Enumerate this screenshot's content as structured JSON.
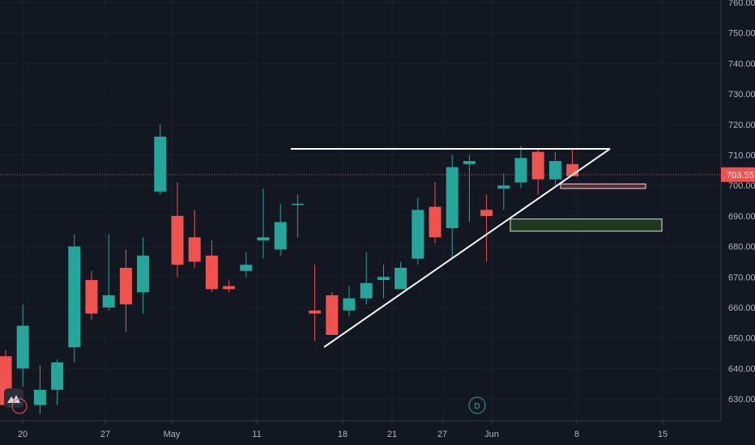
{
  "chart_data": {
    "type": "candlestick",
    "ylim": [
      620,
      762
    ],
    "y_ticks": [
      "630.00",
      "640.00",
      "650.00",
      "660.00",
      "670.00",
      "680.00",
      "690.00",
      "700.00",
      "710.00",
      "720.00",
      "730.00",
      "740.00",
      "750.00",
      "760.00"
    ],
    "x_ticks": [
      "20",
      "27",
      "May",
      "11",
      "18",
      "21",
      "27",
      "Jun",
      "8",
      "15"
    ],
    "last_price": "703.55",
    "colors": {
      "up": "#26a69a",
      "down": "#ef5350",
      "background": "#131722",
      "last_price_line": "#ef5350"
    },
    "candles": [
      {
        "o": 644,
        "h": 646,
        "l": 628,
        "c": 628
      },
      {
        "o": 640,
        "h": 661,
        "l": 634,
        "c": 654
      },
      {
        "o": 628,
        "h": 641,
        "l": 625,
        "c": 633
      },
      {
        "o": 633,
        "h": 643,
        "l": 628,
        "c": 642
      },
      {
        "o": 647,
        "h": 684,
        "l": 642,
        "c": 680
      },
      {
        "o": 669,
        "h": 672,
        "l": 656,
        "c": 658
      },
      {
        "o": 660,
        "h": 684,
        "l": 659,
        "c": 664
      },
      {
        "o": 673,
        "h": 679,
        "l": 652,
        "c": 661
      },
      {
        "o": 665,
        "h": 683,
        "l": 658,
        "c": 677
      },
      {
        "o": 698,
        "h": 720,
        "l": 697,
        "c": 716
      },
      {
        "o": 690,
        "h": 701,
        "l": 670,
        "c": 674
      },
      {
        "o": 683,
        "h": 692,
        "l": 673,
        "c": 675
      },
      {
        "o": 677,
        "h": 682,
        "l": 665,
        "c": 666
      },
      {
        "o": 667,
        "h": 669,
        "l": 665,
        "c": 666
      },
      {
        "o": 672,
        "h": 678,
        "l": 670,
        "c": 674
      },
      {
        "o": 682,
        "h": 699,
        "l": 676,
        "c": 683
      },
      {
        "o": 679,
        "h": 694,
        "l": 677,
        "c": 688
      },
      {
        "o": 694,
        "h": 697,
        "l": 683,
        "c": 694
      },
      {
        "o": 659,
        "h": 674,
        "l": 649,
        "c": 658
      },
      {
        "o": 664,
        "h": 665,
        "l": 651,
        "c": 651
      },
      {
        "o": 659,
        "h": 667,
        "l": 657,
        "c": 663
      },
      {
        "o": 663,
        "h": 678,
        "l": 661,
        "c": 668
      },
      {
        "o": 669,
        "h": 674,
        "l": 663,
        "c": 670
      },
      {
        "o": 666,
        "h": 675,
        "l": 666,
        "c": 673
      },
      {
        "o": 676,
        "h": 696,
        "l": 674,
        "c": 692
      },
      {
        "o": 693,
        "h": 701,
        "l": 681,
        "c": 683
      },
      {
        "o": 686,
        "h": 710,
        "l": 676,
        "c": 706
      },
      {
        "o": 707,
        "h": 710,
        "l": 688,
        "c": 708
      },
      {
        "o": 692,
        "h": 697,
        "l": 675,
        "c": 690
      },
      {
        "o": 699,
        "h": 704,
        "l": 692,
        "c": 700
      },
      {
        "o": 701,
        "h": 713,
        "l": 699,
        "c": 709
      },
      {
        "o": 711,
        "h": 712,
        "l": 697,
        "c": 702
      },
      {
        "o": 702,
        "h": 711,
        "l": 700,
        "c": 708
      },
      {
        "o": 707,
        "h": 712,
        "l": 703,
        "c": 703
      }
    ],
    "drawings": {
      "resistance_line": {
        "y": 712
      },
      "support_line": {
        "from_price": 647,
        "to_price": 712
      },
      "zones": [
        {
          "name": "red-zone",
          "top": 700.5,
          "bottom": 699.0,
          "color": "#ef5350"
        },
        {
          "name": "green-zone",
          "top": 689.0,
          "bottom": 685.0,
          "color": "#2e7d32"
        }
      ]
    },
    "dividend_marker": "D"
  }
}
